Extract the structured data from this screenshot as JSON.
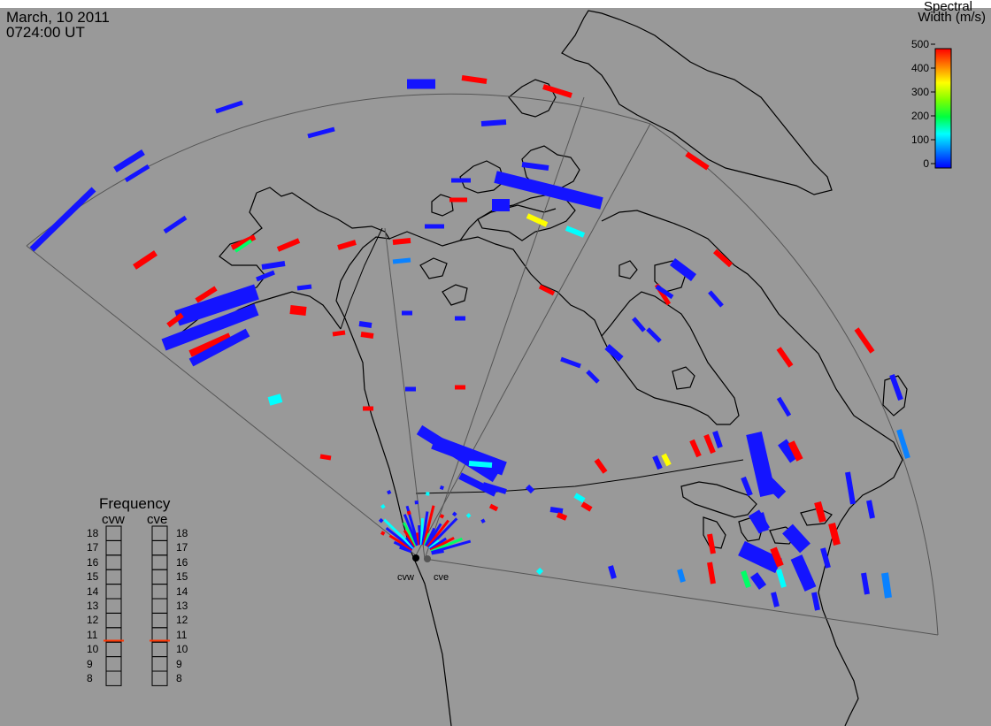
{
  "header": {
    "date": "March, 10 2011",
    "time": "0724:00 UT"
  },
  "colorbar": {
    "title_line1": "Spectral",
    "title_line2": "Width (m/s)",
    "ticks": [
      "500",
      "400",
      "300",
      "200",
      "100",
      "0"
    ],
    "min": 0,
    "max": 500,
    "stops": [
      "#0000ff",
      "#0080ff",
      "#00ffff",
      "#00ff40",
      "#80ff00",
      "#ffff00",
      "#ff8000",
      "#ff0000"
    ]
  },
  "frequency_panel": {
    "title": "Frequency",
    "radars": [
      {
        "name": "cvw",
        "frequency": 10.6
      },
      {
        "name": "cve",
        "frequency": 10.6
      }
    ],
    "scale": [
      "18",
      "17",
      "16",
      "15",
      "14",
      "13",
      "12",
      "11",
      "10",
      "9",
      "8"
    ],
    "indicator_color": "#ff3300"
  },
  "sites": {
    "west": "cvw",
    "east": "cve"
  },
  "colors": {
    "background": "#999999",
    "blue": "#1414ff",
    "red": "#ff0000",
    "cyan": "#00ffff",
    "lightblue": "#0a82ff",
    "green": "#00ff66",
    "yellow": "#ffff00",
    "coast": "#000000",
    "fov": "#555555"
  },
  "scatter": [
    {
      "w": 0,
      "c": "blue"
    }
  ]
}
